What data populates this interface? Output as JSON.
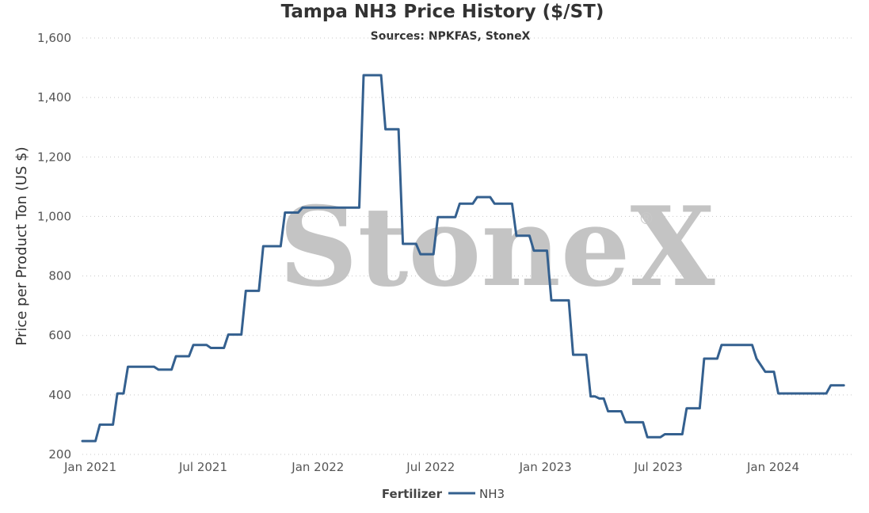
{
  "page": {
    "title": "Tampa NH3 Price History ($/ST)",
    "subtitle": "Sources: NPKFAS, StoneX"
  },
  "watermark": {
    "text": "StoneX",
    "mark": "®",
    "color": "#c4c4c4"
  },
  "colors": {
    "series": "#34608f",
    "grid": "#c8c8c8",
    "axis_text": "#555555"
  },
  "chart_data": {
    "type": "line",
    "title": "Tampa NH3 Price History ($/ST)",
    "subtitle": "Sources: NPKFAS, StoneX",
    "xlabel": "",
    "ylabel": "Price per Product Ton (US $)",
    "ylim": [
      200,
      1600
    ],
    "yticks": [
      200,
      400,
      600,
      800,
      1000,
      1200,
      1400,
      1600
    ],
    "ytick_labels": [
      "200",
      "400",
      "600",
      "800",
      "1,000",
      "1,200",
      "1,400",
      "1,600"
    ],
    "xlim": [
      "2021-01-01",
      "2024-05-15"
    ],
    "xticks": [
      "2021-01-01",
      "2021-07-01",
      "2022-01-01",
      "2022-07-01",
      "2023-01-01",
      "2023-07-01",
      "2024-01-01"
    ],
    "xtick_labels": [
      "Jan 2021",
      "Jul 2021",
      "Jan 2022",
      "Jul 2022",
      "Jan 2023",
      "Jul 2023",
      "Jan 2024"
    ],
    "grid": "horizontal dotted",
    "legend": {
      "title": "Fertilizer",
      "position": "bottom-center"
    },
    "series": [
      {
        "name": "NH3",
        "points": [
          [
            "2021-01-01",
            245
          ],
          [
            "2021-01-22",
            245
          ],
          [
            "2021-01-29",
            300
          ],
          [
            "2021-02-19",
            300
          ],
          [
            "2021-02-26",
            405
          ],
          [
            "2021-03-08",
            405
          ],
          [
            "2021-03-15",
            495
          ],
          [
            "2021-04-26",
            495
          ],
          [
            "2021-05-03",
            485
          ],
          [
            "2021-05-24",
            485
          ],
          [
            "2021-05-31",
            530
          ],
          [
            "2021-06-21",
            530
          ],
          [
            "2021-06-28",
            568
          ],
          [
            "2021-07-19",
            568
          ],
          [
            "2021-07-26",
            558
          ],
          [
            "2021-08-16",
            558
          ],
          [
            "2021-08-23",
            603
          ],
          [
            "2021-09-13",
            603
          ],
          [
            "2021-09-20",
            750
          ],
          [
            "2021-10-11",
            750
          ],
          [
            "2021-10-18",
            900
          ],
          [
            "2021-11-15",
            900
          ],
          [
            "2021-11-22",
            1013
          ],
          [
            "2021-12-13",
            1013
          ],
          [
            "2021-12-20",
            1030
          ],
          [
            "2022-03-21",
            1030
          ],
          [
            "2022-03-28",
            1475
          ],
          [
            "2022-04-25",
            1475
          ],
          [
            "2022-05-02",
            1293
          ],
          [
            "2022-05-23",
            1293
          ],
          [
            "2022-05-30",
            908
          ],
          [
            "2022-06-20",
            908
          ],
          [
            "2022-06-27",
            873
          ],
          [
            "2022-07-18",
            873
          ],
          [
            "2022-07-25",
            998
          ],
          [
            "2022-08-22",
            998
          ],
          [
            "2022-08-29",
            1043
          ],
          [
            "2022-09-19",
            1043
          ],
          [
            "2022-09-26",
            1065
          ],
          [
            "2022-10-17",
            1065
          ],
          [
            "2022-10-24",
            1043
          ],
          [
            "2022-11-21",
            1043
          ],
          [
            "2022-11-28",
            935
          ],
          [
            "2022-12-19",
            935
          ],
          [
            "2022-12-26",
            885
          ],
          [
            "2023-01-16",
            885
          ],
          [
            "2023-01-23",
            718
          ],
          [
            "2023-02-20",
            718
          ],
          [
            "2023-02-27",
            535
          ],
          [
            "2023-03-20",
            535
          ],
          [
            "2023-03-27",
            395
          ],
          [
            "2023-04-03",
            395
          ],
          [
            "2023-04-10",
            388
          ],
          [
            "2023-04-17",
            388
          ],
          [
            "2023-04-24",
            345
          ],
          [
            "2023-05-15",
            345
          ],
          [
            "2023-05-22",
            308
          ],
          [
            "2023-06-19",
            308
          ],
          [
            "2023-06-26",
            258
          ],
          [
            "2023-07-17",
            258
          ],
          [
            "2023-07-24",
            268
          ],
          [
            "2023-08-21",
            268
          ],
          [
            "2023-08-28",
            355
          ],
          [
            "2023-09-18",
            355
          ],
          [
            "2023-09-25",
            522
          ],
          [
            "2023-10-16",
            522
          ],
          [
            "2023-10-23",
            568
          ],
          [
            "2023-12-11",
            568
          ],
          [
            "2023-12-18",
            522
          ],
          [
            "2024-01-01",
            478
          ],
          [
            "2024-01-15",
            478
          ],
          [
            "2024-01-22",
            405
          ],
          [
            "2024-04-08",
            405
          ],
          [
            "2024-04-15",
            432
          ],
          [
            "2024-05-06",
            432
          ]
        ]
      }
    ]
  }
}
